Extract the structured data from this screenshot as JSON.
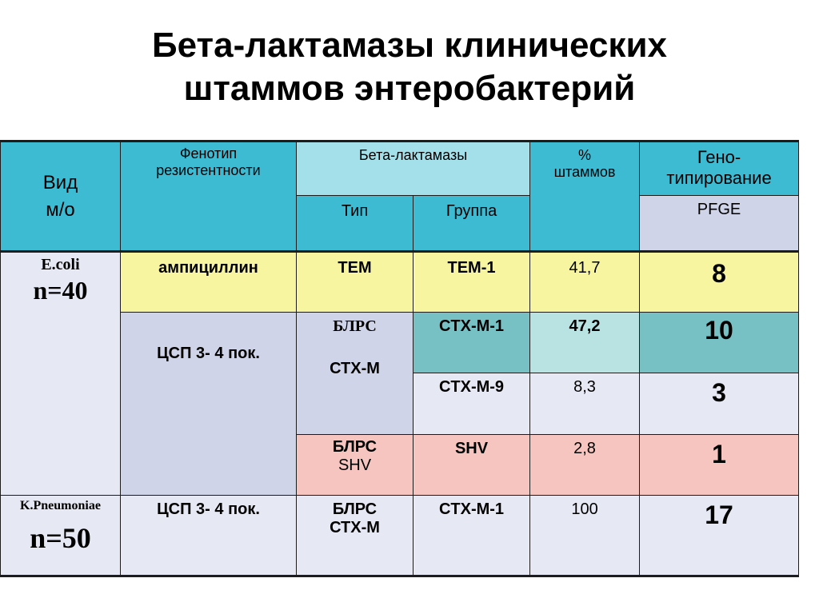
{
  "title": {
    "line1": "Бета-лактамазы клинических",
    "line2": "штаммов энтеробактерий"
  },
  "header": {
    "species_line1": "Вид",
    "species_line2": "м/о",
    "phenotype_line1": "Фенотип",
    "phenotype_line2": "резистентности",
    "beta_lactamases": "Бета-лактамазы",
    "type": "Тип",
    "group": "Группа",
    "percent_line1": "%",
    "percent_line2": "штаммов",
    "geno_line1": "Гено-",
    "geno_line2": "типирование",
    "pfge": "PFGE"
  },
  "rows": {
    "ecoli_name": "E.coli",
    "ecoli_n": "n=40",
    "ampicillin": "ампициллин",
    "tem": "TEM",
    "tem1": "TEM-1",
    "tem1_pct": "41,7",
    "tem1_pfge": "8",
    "csp1": "ЦСП 3- 4 пок.",
    "blrs1": "БЛРС",
    "ctxm_type1": "СТХ-М",
    "ctxm1": "CTX-M-1",
    "ctxm1_pct": "47,2",
    "ctxm1_pfge": "10",
    "ctxm9": "CTX-M-9",
    "ctxm9_pct": "8,3",
    "ctxm9_pfge": "3",
    "blrs_shv_line1": "БЛРС",
    "blrs_shv_line2": "SHV",
    "shv": "SHV",
    "shv_pct": "2,8",
    "shv_pfge": "1",
    "kpn_name": "K.Pneumoniae",
    "kpn_n": "n=50",
    "csp2": "ЦСП 3- 4 пок.",
    "blrs_ctxm_line1": "БЛРС",
    "blrs_ctxm_line2": "СТХ-М",
    "kpn_ctxm1": "CTX-M-1",
    "kpn_pct": "100",
    "kpn_pfge": "17"
  },
  "colors": {
    "header_teal": "#3dbbd3",
    "header_light_teal": "#a3e0ea",
    "lavender": "#d0d4e8",
    "yellow": "#f8f5a0",
    "dark_teal": "#77c1c5",
    "pink": "#f6c5bf"
  }
}
